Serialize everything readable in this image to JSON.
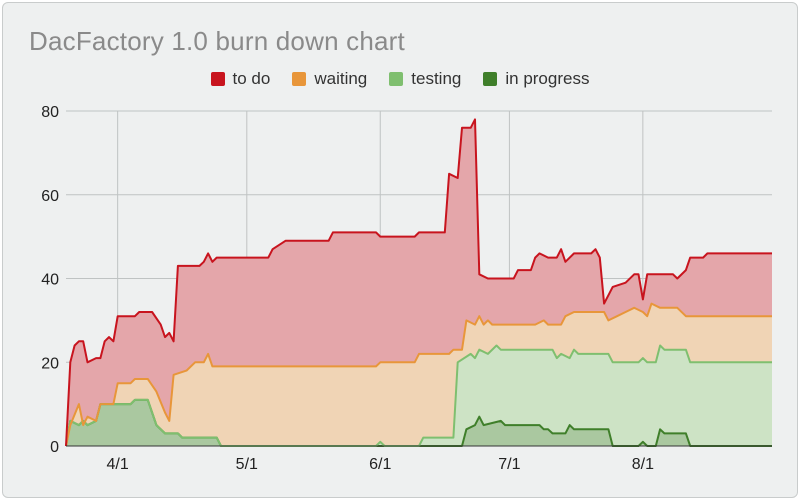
{
  "chart_data": {
    "type": "area",
    "stacked": true,
    "title": "DacFactory 1.0 burn down chart",
    "xlabel": "",
    "ylabel": "",
    "ylim": [
      0,
      80
    ],
    "y_ticks": [
      "0",
      "20",
      "40",
      "60",
      "80"
    ],
    "x_range": [
      "2024-03-20",
      "2024-08-31"
    ],
    "x_ticks": [
      {
        "date": "2024-04-01",
        "label": "4/1"
      },
      {
        "date": "2024-05-01",
        "label": "5/1"
      },
      {
        "date": "2024-06-01",
        "label": "6/1"
      },
      {
        "date": "2024-07-01",
        "label": "7/1"
      },
      {
        "date": "2024-08-01",
        "label": "8/1"
      }
    ],
    "grid": true,
    "legend_position": "top",
    "series": [
      {
        "name": "in progress",
        "color": "#3f7f2a",
        "fill": "#aac8a0",
        "points": [
          [
            "2024-03-20",
            0
          ],
          [
            "2024-03-21",
            6
          ],
          [
            "2024-03-23",
            5
          ],
          [
            "2024-03-24",
            6
          ],
          [
            "2024-03-25",
            5
          ],
          [
            "2024-03-27",
            6
          ],
          [
            "2024-03-28",
            10
          ],
          [
            "2024-04-04",
            10
          ],
          [
            "2024-04-05",
            11
          ],
          [
            "2024-04-08",
            11
          ],
          [
            "2024-04-10",
            5
          ],
          [
            "2024-04-12",
            3
          ],
          [
            "2024-04-15",
            3
          ],
          [
            "2024-04-16",
            2
          ],
          [
            "2024-04-24",
            2
          ],
          [
            "2024-04-25",
            0
          ],
          [
            "2024-06-20",
            0
          ],
          [
            "2024-06-21",
            4
          ],
          [
            "2024-06-23",
            5
          ],
          [
            "2024-06-24",
            7
          ],
          [
            "2024-06-25",
            5
          ],
          [
            "2024-06-29",
            6
          ],
          [
            "2024-06-30",
            5
          ],
          [
            "2024-07-08",
            5
          ],
          [
            "2024-07-09",
            4
          ],
          [
            "2024-07-10",
            4
          ],
          [
            "2024-07-11",
            3
          ],
          [
            "2024-07-14",
            3
          ],
          [
            "2024-07-15",
            5
          ],
          [
            "2024-07-16",
            4
          ],
          [
            "2024-07-24",
            4
          ],
          [
            "2024-07-25",
            0
          ],
          [
            "2024-07-31",
            0
          ],
          [
            "2024-08-01",
            1
          ],
          [
            "2024-08-02",
            0
          ],
          [
            "2024-08-04",
            0
          ],
          [
            "2024-08-05",
            4
          ],
          [
            "2024-08-06",
            3
          ],
          [
            "2024-08-11",
            3
          ],
          [
            "2024-08-12",
            0
          ],
          [
            "2024-08-31",
            0
          ]
        ]
      },
      {
        "name": "testing",
        "color": "#7fbf6f",
        "fill": "#cde3c5",
        "points": [
          [
            "2024-03-20",
            0
          ],
          [
            "2024-03-21",
            6
          ],
          [
            "2024-03-23",
            5
          ],
          [
            "2024-03-24",
            6
          ],
          [
            "2024-03-25",
            5
          ],
          [
            "2024-03-27",
            6
          ],
          [
            "2024-03-28",
            10
          ],
          [
            "2024-04-04",
            10
          ],
          [
            "2024-04-05",
            11
          ],
          [
            "2024-04-08",
            11
          ],
          [
            "2024-04-10",
            5
          ],
          [
            "2024-04-12",
            3
          ],
          [
            "2024-04-15",
            3
          ],
          [
            "2024-04-16",
            2
          ],
          [
            "2024-04-24",
            2
          ],
          [
            "2024-04-25",
            0
          ],
          [
            "2024-05-31",
            0
          ],
          [
            "2024-06-01",
            1
          ],
          [
            "2024-06-02",
            0
          ],
          [
            "2024-06-10",
            0
          ],
          [
            "2024-06-11",
            2
          ],
          [
            "2024-06-18",
            2
          ],
          [
            "2024-06-19",
            20
          ],
          [
            "2024-06-22",
            22
          ],
          [
            "2024-06-23",
            21
          ],
          [
            "2024-06-24",
            23
          ],
          [
            "2024-06-26",
            22
          ],
          [
            "2024-06-28",
            24
          ],
          [
            "2024-06-29",
            23
          ],
          [
            "2024-07-11",
            23
          ],
          [
            "2024-07-12",
            21
          ],
          [
            "2024-07-13",
            22
          ],
          [
            "2024-07-15",
            21
          ],
          [
            "2024-07-16",
            23
          ],
          [
            "2024-07-17",
            22
          ],
          [
            "2024-07-24",
            22
          ],
          [
            "2024-07-25",
            20
          ],
          [
            "2024-07-31",
            20
          ],
          [
            "2024-08-01",
            21
          ],
          [
            "2024-08-02",
            20
          ],
          [
            "2024-08-04",
            20
          ],
          [
            "2024-08-05",
            24
          ],
          [
            "2024-08-06",
            23
          ],
          [
            "2024-08-11",
            23
          ],
          [
            "2024-08-12",
            20
          ],
          [
            "2024-08-31",
            20
          ]
        ]
      },
      {
        "name": "waiting",
        "color": "#e8963a",
        "fill": "#f0d4b5",
        "points": [
          [
            "2024-03-20",
            0
          ],
          [
            "2024-03-21",
            5
          ],
          [
            "2024-03-23",
            10
          ],
          [
            "2024-03-24",
            5
          ],
          [
            "2024-03-25",
            7
          ],
          [
            "2024-03-27",
            6
          ],
          [
            "2024-03-28",
            10
          ],
          [
            "2024-03-31",
            10
          ],
          [
            "2024-04-01",
            15
          ],
          [
            "2024-04-04",
            15
          ],
          [
            "2024-04-05",
            16
          ],
          [
            "2024-04-08",
            16
          ],
          [
            "2024-04-10",
            13
          ],
          [
            "2024-04-12",
            8
          ],
          [
            "2024-04-13",
            6
          ],
          [
            "2024-04-14",
            17
          ],
          [
            "2024-04-17",
            18
          ],
          [
            "2024-04-19",
            20
          ],
          [
            "2024-04-21",
            20
          ],
          [
            "2024-04-22",
            22
          ],
          [
            "2024-04-23",
            19
          ],
          [
            "2024-05-31",
            19
          ],
          [
            "2024-06-01",
            20
          ],
          [
            "2024-06-09",
            20
          ],
          [
            "2024-06-10",
            22
          ],
          [
            "2024-06-17",
            22
          ],
          [
            "2024-06-18",
            23
          ],
          [
            "2024-06-20",
            23
          ],
          [
            "2024-06-21",
            30
          ],
          [
            "2024-06-23",
            29
          ],
          [
            "2024-06-24",
            31
          ],
          [
            "2024-06-25",
            29
          ],
          [
            "2024-06-26",
            30
          ],
          [
            "2024-06-27",
            29
          ],
          [
            "2024-07-07",
            29
          ],
          [
            "2024-07-09",
            30
          ],
          [
            "2024-07-10",
            29
          ],
          [
            "2024-07-13",
            29
          ],
          [
            "2024-07-14",
            31
          ],
          [
            "2024-07-16",
            32
          ],
          [
            "2024-07-23",
            32
          ],
          [
            "2024-07-24",
            30
          ],
          [
            "2024-07-26",
            31
          ],
          [
            "2024-07-28",
            32
          ],
          [
            "2024-07-30",
            33
          ],
          [
            "2024-08-01",
            32
          ],
          [
            "2024-08-02",
            31
          ],
          [
            "2024-08-03",
            34
          ],
          [
            "2024-08-05",
            33
          ],
          [
            "2024-08-09",
            33
          ],
          [
            "2024-08-11",
            31
          ],
          [
            "2024-08-31",
            31
          ]
        ]
      },
      {
        "name": "to do",
        "color": "#c8141e",
        "fill": "#e4a6aa",
        "points": [
          [
            "2024-03-20",
            0
          ],
          [
            "2024-03-21",
            20
          ],
          [
            "2024-03-22",
            24
          ],
          [
            "2024-03-23",
            25
          ],
          [
            "2024-03-24",
            25
          ],
          [
            "2024-03-25",
            20
          ],
          [
            "2024-03-27",
            21
          ],
          [
            "2024-03-28",
            21
          ],
          [
            "2024-03-29",
            25
          ],
          [
            "2024-03-30",
            26
          ],
          [
            "2024-03-31",
            25
          ],
          [
            "2024-04-01",
            31
          ],
          [
            "2024-04-05",
            31
          ],
          [
            "2024-04-06",
            32
          ],
          [
            "2024-04-09",
            32
          ],
          [
            "2024-04-11",
            29
          ],
          [
            "2024-04-12",
            26
          ],
          [
            "2024-04-13",
            27
          ],
          [
            "2024-04-14",
            25
          ],
          [
            "2024-04-15",
            43
          ],
          [
            "2024-04-20",
            43
          ],
          [
            "2024-04-21",
            44
          ],
          [
            "2024-04-22",
            46
          ],
          [
            "2024-04-23",
            44
          ],
          [
            "2024-04-24",
            45
          ],
          [
            "2024-05-06",
            45
          ],
          [
            "2024-05-07",
            47
          ],
          [
            "2024-05-10",
            49
          ],
          [
            "2024-05-20",
            49
          ],
          [
            "2024-05-21",
            51
          ],
          [
            "2024-05-31",
            51
          ],
          [
            "2024-06-01",
            50
          ],
          [
            "2024-06-09",
            50
          ],
          [
            "2024-06-10",
            51
          ],
          [
            "2024-06-16",
            51
          ],
          [
            "2024-06-17",
            65
          ],
          [
            "2024-06-19",
            64
          ],
          [
            "2024-06-20",
            76
          ],
          [
            "2024-06-22",
            76
          ],
          [
            "2024-06-23",
            78
          ],
          [
            "2024-06-24",
            41
          ],
          [
            "2024-06-26",
            40
          ],
          [
            "2024-07-02",
            40
          ],
          [
            "2024-07-03",
            42
          ],
          [
            "2024-07-06",
            42
          ],
          [
            "2024-07-07",
            45
          ],
          [
            "2024-07-08",
            46
          ],
          [
            "2024-07-10",
            45
          ],
          [
            "2024-07-12",
            45
          ],
          [
            "2024-07-13",
            47
          ],
          [
            "2024-07-14",
            44
          ],
          [
            "2024-07-16",
            46
          ],
          [
            "2024-07-20",
            46
          ],
          [
            "2024-07-21",
            47
          ],
          [
            "2024-07-22",
            45
          ],
          [
            "2024-07-23",
            34
          ],
          [
            "2024-07-25",
            38
          ],
          [
            "2024-07-28",
            39
          ],
          [
            "2024-07-30",
            41
          ],
          [
            "2024-07-31",
            41
          ],
          [
            "2024-08-01",
            35
          ],
          [
            "2024-08-02",
            41
          ],
          [
            "2024-08-08",
            41
          ],
          [
            "2024-08-09",
            40
          ],
          [
            "2024-08-11",
            42
          ],
          [
            "2024-08-12",
            45
          ],
          [
            "2024-08-15",
            45
          ],
          [
            "2024-08-16",
            46
          ],
          [
            "2024-08-31",
            46
          ]
        ]
      }
    ]
  }
}
